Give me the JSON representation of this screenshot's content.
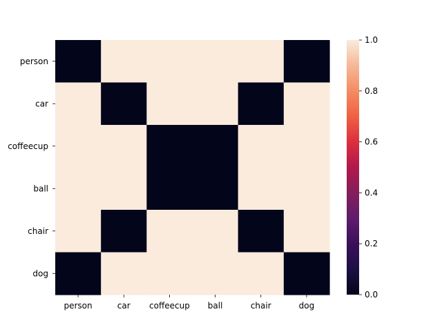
{
  "chart_data": {
    "type": "heatmap",
    "title": "",
    "xlabel": "",
    "ylabel": "",
    "x_categories": [
      "person",
      "car",
      "coffeecup",
      "ball",
      "chair",
      "dog"
    ],
    "y_categories": [
      "person",
      "car",
      "coffeecup",
      "ball",
      "chair",
      "dog"
    ],
    "values": [
      [
        0,
        1,
        1,
        1,
        1,
        0
      ],
      [
        1,
        0,
        1,
        1,
        0,
        1
      ],
      [
        1,
        1,
        0,
        0,
        1,
        1
      ],
      [
        1,
        1,
        0,
        0,
        1,
        1
      ],
      [
        1,
        0,
        1,
        1,
        0,
        1
      ],
      [
        0,
        1,
        1,
        1,
        1,
        0
      ]
    ],
    "colorbar": {
      "range": [
        0.0,
        1.0
      ],
      "ticks": [
        "0.0",
        "0.2",
        "0.4",
        "0.6",
        "0.8",
        "1.0"
      ],
      "colormap": "rocket",
      "low_color": "#03051a",
      "high_color": "#faebdd"
    }
  }
}
